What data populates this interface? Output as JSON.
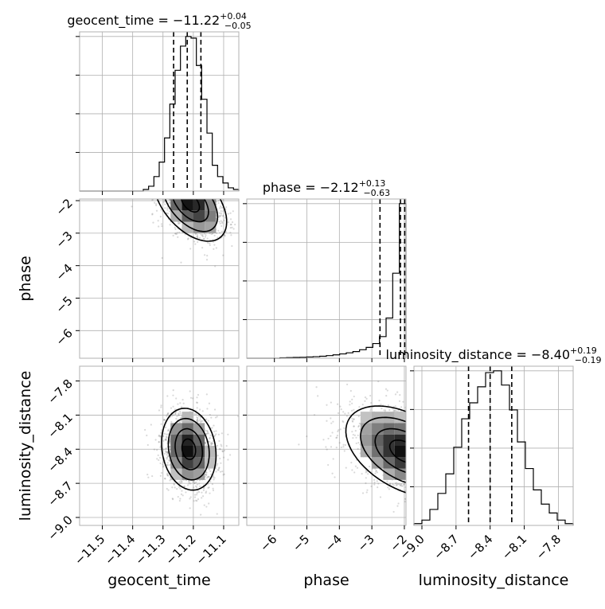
{
  "chart_data": {
    "type": "corner",
    "parameters": [
      "geocent_time",
      "phase",
      "luminosity_distance"
    ],
    "axis_labels": [
      "geocent_time",
      "phase",
      "luminosity_distance"
    ],
    "ranges": {
      "geocent_time": [
        -11.575,
        -11.05
      ],
      "phase": [
        -6.85,
        -1.95
      ],
      "luminosity_distance": [
        -9.07,
        -7.67
      ]
    },
    "ticks": {
      "geocent_time": {
        "values": [
          -11.5,
          -11.4,
          -11.3,
          -11.2,
          -11.1
        ],
        "labels": [
          "−11.5",
          "−11.4",
          "−11.3",
          "−11.2",
          "−11.1"
        ]
      },
      "phase": {
        "values": [
          -6,
          -5,
          -4,
          -3,
          -2
        ],
        "labels": [
          "−6",
          "−5",
          "−4",
          "−3",
          "−2"
        ]
      },
      "luminosity_distance": {
        "values": [
          -9.0,
          -8.7,
          -8.4,
          -8.1,
          -7.8
        ],
        "labels": [
          "−9.0",
          "−8.7",
          "−8.4",
          "−8.1",
          "−7.8"
        ]
      }
    },
    "grid": true,
    "marginals": [
      {
        "parameter": "geocent_time",
        "title": {
          "base": "geocent_time = −11.22",
          "plus": "+0.04",
          "minus": "−0.05"
        },
        "quantiles": [
          -11.265,
          -11.22,
          -11.175
        ],
        "bins": [
          -11.575,
          -11.5575,
          -11.54,
          -11.5225,
          -11.505,
          -11.4875,
          -11.47,
          -11.4525,
          -11.435,
          -11.4175,
          -11.4,
          -11.3825,
          -11.365,
          -11.3475,
          -11.33,
          -11.3125,
          -11.295,
          -11.2775,
          -11.26,
          -11.2425,
          -11.225,
          -11.2075,
          -11.19,
          -11.1725,
          -11.155,
          -11.1375,
          -11.12,
          -11.1025,
          -11.085,
          -11.0675,
          -11.05
        ],
        "counts": [
          0,
          0,
          0,
          0,
          0,
          0,
          0,
          0,
          0,
          0,
          0,
          0,
          1,
          3,
          9,
          18,
          33,
          54,
          75,
          90,
          96,
          95,
          78,
          57,
          36,
          16,
          9,
          5,
          2,
          1
        ]
      },
      {
        "parameter": "phase",
        "title": {
          "base": "phase = −2.12",
          "plus": "+0.13",
          "minus": "−0.63"
        },
        "quantiles": [
          -2.75,
          -2.12,
          -1.99
        ],
        "bins": [
          -6.85,
          -6.645833,
          -6.441667,
          -6.2375,
          -6.033333,
          -5.829167,
          -5.625,
          -5.420833,
          -5.216667,
          -5.0125,
          -4.808333,
          -4.604167,
          -4.4,
          -4.195833,
          -3.991667,
          -3.7875,
          -3.583333,
          -3.379167,
          -3.175,
          -2.970833,
          -2.766667,
          -2.5625,
          -2.358333,
          -2.154167,
          -1.95
        ],
        "counts": [
          0,
          0,
          0,
          0,
          0,
          0.3,
          0.4,
          0.5,
          0.6,
          0.8,
          1,
          1.3,
          1.7,
          2.2,
          2.8,
          3.5,
          4.3,
          5.5,
          7,
          9.5,
          14,
          26,
          55,
          100
        ]
      },
      {
        "parameter": "luminosity_distance",
        "title": {
          "base": "luminosity_distance = −8.40",
          "plus": "+0.19",
          "minus": "−0.19"
        },
        "quantiles": [
          -8.59,
          -8.4,
          -8.21
        ],
        "bins": [
          -9.07,
          -9.0,
          -8.93,
          -8.86,
          -8.79,
          -8.72,
          -8.65,
          -8.58,
          -8.51,
          -8.44,
          -8.37,
          -8.3,
          -8.23,
          -8.16,
          -8.09,
          -8.02,
          -7.95,
          -7.88,
          -7.81,
          -7.74,
          -7.67
        ],
        "counts": [
          1,
          3,
          9,
          18,
          29,
          44,
          60,
          69,
          78,
          86,
          87,
          79,
          65,
          47,
          32,
          20,
          12,
          7,
          3,
          1
        ]
      }
    ],
    "joint_2d": [
      {
        "x": "geocent_time",
        "y": "phase",
        "peak": [
          -11.21,
          -2.05
        ],
        "spread": [
          0.06,
          0.6
        ],
        "correlation": -0.5,
        "note": "peak at the upper edge"
      },
      {
        "x": "geocent_time",
        "y": "luminosity_distance",
        "peak": [
          -11.215,
          -8.4
        ],
        "spread": [
          0.045,
          0.18
        ],
        "correlation": -0.15
      },
      {
        "x": "phase",
        "y": "luminosity_distance",
        "peak": [
          -2.0,
          -8.42
        ],
        "spread": [
          0.9,
          0.2
        ],
        "correlation": -0.45,
        "note": "peak at the right edge"
      }
    ]
  }
}
